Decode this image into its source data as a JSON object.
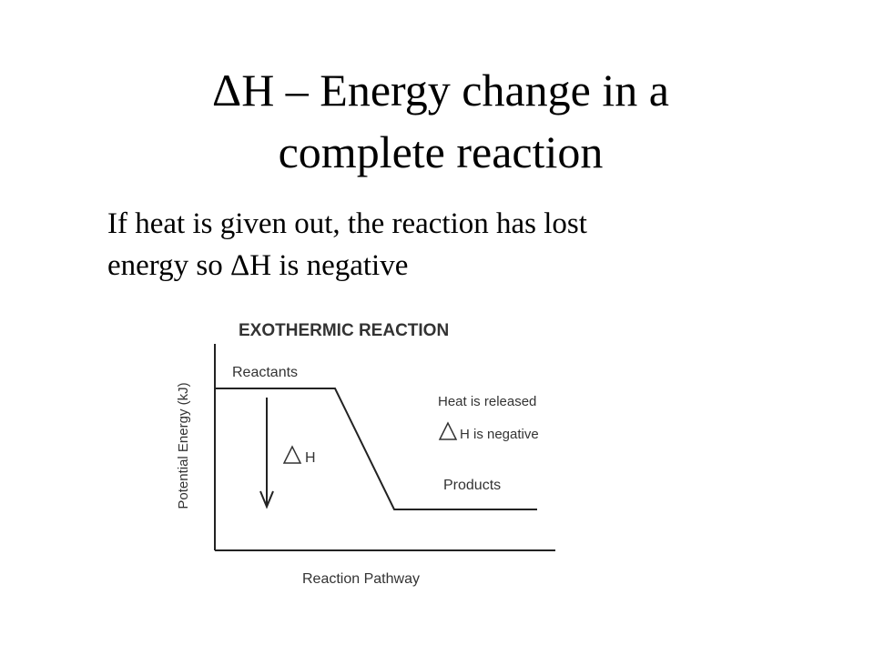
{
  "title": {
    "lines": [
      "ΔH – Energy change in a",
      "complete reaction"
    ]
  },
  "body": {
    "lines": [
      "If heat is given out, the reaction has lost",
      "energy so ΔH is negative"
    ]
  },
  "diagram": {
    "title": "EXOTHERMIC REACTION",
    "y_axis_label": "Potential Energy (kJ)",
    "x_axis_label": "Reaction Pathway",
    "reactants": "Reactants",
    "products": "Products",
    "delta_label": "H",
    "note_1": "Heat is released",
    "note_2": "H is negative"
  }
}
